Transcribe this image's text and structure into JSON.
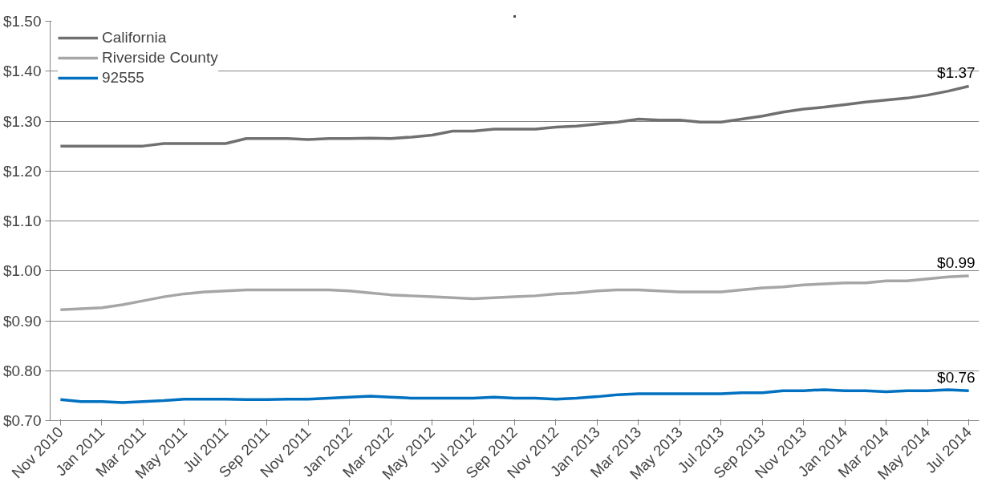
{
  "chart_data": {
    "type": "line",
    "title": ".",
    "categories": [
      "Nov 2010",
      null,
      "Jan 2011",
      null,
      "Mar 2011",
      null,
      "May 2011",
      null,
      "Jul 2011",
      null,
      "Sep 2011",
      null,
      "Nov 2011",
      null,
      "Jan 2012",
      null,
      "Mar 2012",
      null,
      "May 2012",
      null,
      "Jul 2012",
      null,
      "Sep 2012",
      null,
      "Nov 2012",
      null,
      "Jan 2013",
      null,
      "Mar 2013",
      null,
      "May 2013",
      null,
      "Jul 2013",
      null,
      "Sep 2013",
      null,
      "Nov 2013",
      null,
      "Jan 2014",
      null,
      "Mar 2014",
      null,
      "May 2014",
      null,
      "Jul 2014"
    ],
    "series": [
      {
        "name": "California",
        "color": "#707070",
        "values": [
          1.25,
          1.25,
          1.25,
          1.25,
          1.25,
          1.255,
          1.255,
          1.255,
          1.255,
          1.265,
          1.265,
          1.265,
          1.263,
          1.265,
          1.265,
          1.266,
          1.265,
          1.268,
          1.272,
          1.28,
          1.28,
          1.284,
          1.284,
          1.284,
          1.288,
          1.29,
          1.294,
          1.298,
          1.304,
          1.302,
          1.302,
          1.298,
          1.298,
          1.304,
          1.31,
          1.318,
          1.324,
          1.328,
          1.333,
          1.338,
          1.342,
          1.346,
          1.352,
          1.36,
          1.37
        ],
        "value_labels": [
          null,
          null,
          null,
          null,
          null,
          null,
          null,
          null,
          null,
          null,
          null,
          null,
          null,
          null,
          null,
          null,
          null,
          null,
          null,
          null,
          null,
          null,
          null,
          null,
          null,
          null,
          null,
          null,
          null,
          null,
          null,
          null,
          null,
          null,
          null,
          null,
          null,
          null,
          null,
          null,
          null,
          null,
          null,
          null,
          "$1.37"
        ]
      },
      {
        "name": "Riverside County",
        "color": "#a6a6a6",
        "values": [
          0.922,
          0.924,
          0.926,
          0.932,
          0.94,
          0.948,
          0.954,
          0.958,
          0.96,
          0.962,
          0.962,
          0.962,
          0.962,
          0.962,
          0.96,
          0.956,
          0.952,
          0.95,
          0.948,
          0.946,
          0.944,
          0.946,
          0.948,
          0.95,
          0.954,
          0.956,
          0.96,
          0.962,
          0.962,
          0.96,
          0.958,
          0.958,
          0.958,
          0.962,
          0.966,
          0.968,
          0.972,
          0.974,
          0.976,
          0.976,
          0.98,
          0.98,
          0.984,
          0.988,
          0.99
        ],
        "value_labels": [
          null,
          null,
          null,
          null,
          null,
          null,
          null,
          null,
          null,
          null,
          null,
          null,
          null,
          null,
          null,
          null,
          null,
          null,
          null,
          null,
          null,
          null,
          null,
          null,
          null,
          null,
          null,
          null,
          null,
          null,
          null,
          null,
          null,
          null,
          null,
          null,
          null,
          null,
          null,
          null,
          null,
          null,
          null,
          null,
          "$0.99"
        ]
      },
      {
        "name": "92555",
        "color": "#0070c0",
        "values": [
          0.742,
          0.738,
          0.738,
          0.736,
          0.738,
          0.74,
          0.743,
          0.743,
          0.743,
          0.742,
          0.742,
          0.743,
          0.743,
          0.745,
          0.747,
          0.749,
          0.747,
          0.745,
          0.745,
          0.745,
          0.745,
          0.747,
          0.745,
          0.745,
          0.743,
          0.745,
          0.748,
          0.752,
          0.754,
          0.754,
          0.754,
          0.754,
          0.754,
          0.756,
          0.756,
          0.76,
          0.76,
          0.762,
          0.76,
          0.76,
          0.758,
          0.76,
          0.76,
          0.762,
          0.76
        ],
        "value_labels": [
          null,
          null,
          null,
          null,
          null,
          null,
          null,
          null,
          null,
          null,
          null,
          null,
          null,
          null,
          null,
          null,
          null,
          null,
          null,
          null,
          null,
          null,
          null,
          null,
          null,
          null,
          null,
          null,
          null,
          null,
          null,
          null,
          null,
          null,
          null,
          null,
          null,
          null,
          null,
          null,
          null,
          null,
          null,
          null,
          "$0.76"
        ]
      }
    ],
    "ylim": [
      0.7,
      1.5
    ],
    "yticks": [
      {
        "value": 0.7,
        "label": "$0.70"
      },
      {
        "value": 0.8,
        "label": "$0.80"
      },
      {
        "value": 0.9,
        "label": "$0.90"
      },
      {
        "value": 1.0,
        "label": "$1.00"
      },
      {
        "value": 1.1,
        "label": "$1.10"
      },
      {
        "value": 1.2,
        "label": "$1.20"
      },
      {
        "value": 1.3,
        "label": "$1.30"
      },
      {
        "value": 1.4,
        "label": "$1.40"
      },
      {
        "value": 1.5,
        "label": "$1.50"
      }
    ],
    "grid": "y",
    "legend": "top left",
    "marker": "none",
    "line_style": "solid"
  }
}
